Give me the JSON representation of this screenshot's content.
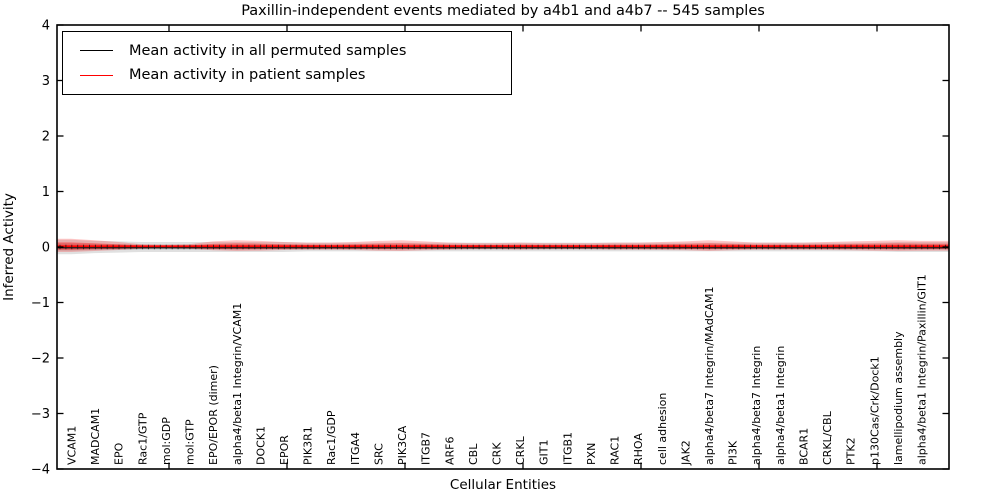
{
  "chart_data": {
    "type": "line",
    "title": "Paxillin-independent events mediated by a4b1 and a4b7 -- 545 samples",
    "xlabel": "Cellular Entities",
    "ylabel": "Inferred Activity",
    "ylim": [
      -4,
      4
    ],
    "yticks": [
      -4,
      -3,
      -2,
      -1,
      0,
      1,
      2,
      3,
      4
    ],
    "grid": false,
    "legend_position": "upper left",
    "categories": [
      "VCAM1",
      "MADCAM1",
      "EPO",
      "Rac1/GTP",
      "mol:GDP",
      "mol:GTP",
      "EPO/EPOR (dimer)",
      "alpha4/beta1 Integrin/VCAM1",
      "DOCK1",
      "EPOR",
      "PIK3R1",
      "Rac1/GDP",
      "ITGA4",
      "SRC",
      "PIK3CA",
      "ITGB7",
      "ARF6",
      "CBL",
      "CRK",
      "CRKL",
      "GIT1",
      "ITGB1",
      "PXN",
      "RAC1",
      "RHOA",
      "cell adhesion",
      "JAK2",
      "alpha4/beta7 Integrin/MAdCAM1",
      "PI3K",
      "alpha4/beta7 Integrin",
      "alpha4/beta1 Integrin",
      "BCAR1",
      "CRKL/CBL",
      "PTK2",
      "p130Cas/Crk/Dock1",
      "lamellipodium assembly",
      "alpha4/beta1 Integrin/Paxillin/GIT1"
    ],
    "series": [
      {
        "name": "Mean activity in all permuted samples",
        "color": "#000000",
        "values": [
          0,
          0,
          0,
          0,
          0,
          0,
          0,
          0,
          0,
          0,
          0,
          0,
          0,
          0,
          0,
          0,
          0,
          0,
          0,
          0,
          0,
          0,
          0,
          0,
          0,
          0,
          0,
          0,
          0,
          0,
          0,
          0,
          0,
          0,
          0,
          0,
          0
        ],
        "band_halfwidth": [
          0.13,
          0.11,
          0.1,
          0.09,
          0.09,
          0.09,
          0.09,
          0.09,
          0.09,
          0.09,
          0.08,
          0.08,
          0.08,
          0.08,
          0.08,
          0.08,
          0.08,
          0.08,
          0.08,
          0.08,
          0.08,
          0.08,
          0.08,
          0.08,
          0.08,
          0.08,
          0.08,
          0.08,
          0.08,
          0.08,
          0.08,
          0.08,
          0.08,
          0.08,
          0.08,
          0.09,
          0.09
        ],
        "band_color": "#000000",
        "band_opacity": 0.12
      },
      {
        "name": "Mean activity in patient samples",
        "color": "#ff0000",
        "values": [
          0,
          0,
          0,
          0,
          0,
          0,
          0,
          0,
          0,
          0,
          0,
          0,
          0,
          0,
          0,
          0,
          0,
          0,
          0,
          0,
          0,
          0,
          0,
          0,
          0,
          0,
          0,
          0,
          0,
          0,
          0,
          0,
          0,
          0,
          0,
          0,
          0
        ],
        "band_halfwidth": [
          0.15,
          0.12,
          0.09,
          0.05,
          0.04,
          0.05,
          0.1,
          0.12,
          0.11,
          0.09,
          0.08,
          0.08,
          0.09,
          0.11,
          0.12,
          0.1,
          0.08,
          0.07,
          0.07,
          0.08,
          0.07,
          0.07,
          0.07,
          0.08,
          0.08,
          0.09,
          0.1,
          0.12,
          0.1,
          0.08,
          0.08,
          0.08,
          0.09,
          0.1,
          0.11,
          0.12,
          0.11
        ],
        "band_color": "#ff0000",
        "band_opacity": 0.22
      }
    ]
  }
}
